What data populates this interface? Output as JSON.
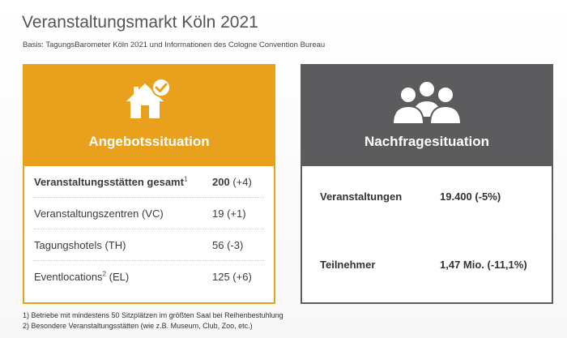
{
  "title": "Veranstaltungsmarkt Köln 2021",
  "subtitle": "Basis: TagungsBarometer Köln 2021 und Informationen des Cologne Convention Bureau",
  "colors": {
    "orange": "#e8a01d",
    "gray": "#5c5b5d"
  },
  "left_panel": {
    "icon": "house-check-icon",
    "heading": "Angebotssituation",
    "rows": [
      {
        "label": "Veranstaltungsstätten gesamt",
        "sup": "1",
        "value_main": "200",
        "value_rest": " (+4)"
      },
      {
        "label": "Veranstaltungszentren (VC)",
        "value": "19 (+1)"
      },
      {
        "label": "Tagungshotels (TH)",
        "value": "56 (-3)"
      },
      {
        "label": "Eventlocations",
        "sup": "2",
        "label_suffix": " (EL)",
        "value": "125 (+6)"
      }
    ]
  },
  "right_panel": {
    "icon": "people-group-icon",
    "heading": "Nachfragesituation",
    "rows": [
      {
        "label": "Veranstaltungen",
        "value": "19.400 (-5%)"
      },
      {
        "label": "Teilnehmer",
        "value": "1,47 Mio. (-11,1%)"
      }
    ]
  },
  "footnotes": [
    "1) Betriebe mit mindestens 50 Sitzplätzen im größten Saal bei Reihenbestuhlung",
    "2) Besondere Veranstaltungsstätten (wie z.B. Museum, Club, Zoo, etc.)"
  ]
}
